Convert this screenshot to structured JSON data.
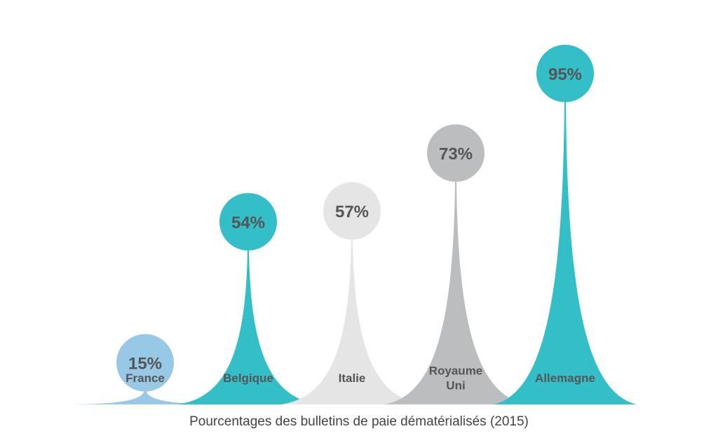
{
  "chart_data": {
    "type": "bar",
    "title": "Pourcentages des bulletins de paie dématérialisés (2015)",
    "categories": [
      "France",
      "Belgique",
      "Italie",
      "Royaume Uni",
      "Allemagne"
    ],
    "category_lines": [
      [
        "France"
      ],
      [
        "Belgique"
      ],
      [
        "Italie"
      ],
      [
        "Royaume",
        "Uni"
      ],
      [
        "Allemagne"
      ]
    ],
    "values": [
      15,
      54,
      57,
      73,
      95
    ],
    "value_labels": [
      "15%",
      "54%",
      "57%",
      "73%",
      "95%"
    ],
    "colors": [
      "#97c8e6",
      "#33bec8",
      "#e5e5e5",
      "#bcbdbf",
      "#33bec8"
    ],
    "ylim": [
      0,
      100
    ],
    "legend": "none",
    "grid": false
  }
}
